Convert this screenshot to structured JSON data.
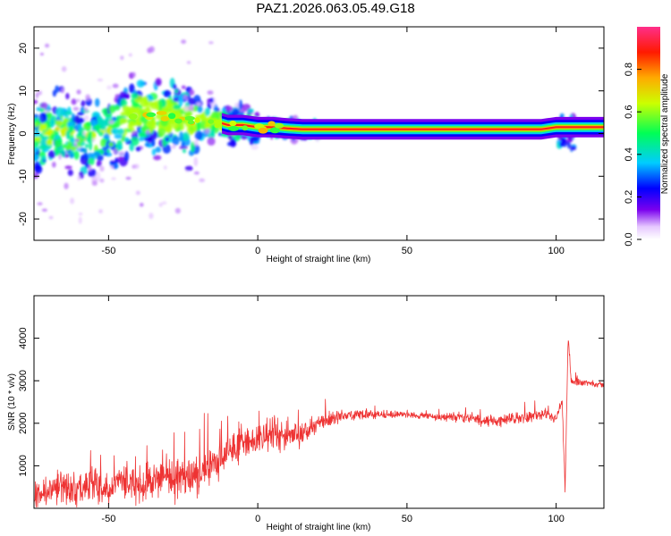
{
  "title": "PAZ1.2026.063.05.49.G18",
  "chart_data": [
    {
      "type": "heatmap",
      "name": "spectrogram",
      "xlabel": "Height of straight line (km)",
      "ylabel": "Frequency (Hz)",
      "xlim": [
        -75,
        116
      ],
      "ylim": [
        -25,
        25
      ],
      "xticks": [
        -50,
        0,
        50,
        100
      ],
      "yticks": [
        -20,
        -10,
        0,
        10,
        20
      ],
      "ridge": {
        "x": [
          -75,
          -70,
          -65,
          -60,
          -55,
          -50,
          -45,
          -40,
          -35,
          -30,
          -25,
          -20,
          -15,
          -10,
          -5,
          0,
          5,
          10,
          15,
          20,
          30,
          40,
          50,
          60,
          70,
          80,
          90,
          95,
          100,
          105,
          110,
          116
        ],
        "freq_hz": [
          -1,
          0,
          1,
          -2,
          -1,
          1,
          2,
          5,
          4,
          4,
          3,
          3,
          3,
          2,
          2,
          1.5,
          1.5,
          1.2,
          1,
          1,
          1,
          1,
          1,
          1,
          1,
          1,
          1,
          1,
          1.5,
          1.5,
          1.5,
          1.5
        ]
      },
      "colorbar": {
        "label": "Normalized spectral amplitude",
        "ticks": [
          "0.0",
          "0.2",
          "0.4",
          "0.6",
          "0.8"
        ],
        "range": [
          0,
          1
        ]
      }
    },
    {
      "type": "line",
      "name": "snr",
      "xlabel": "Height of straight line (km)",
      "ylabel": "SNR (10 * v/v)",
      "xlim": [
        -75,
        116
      ],
      "ylim": [
        0,
        5000
      ],
      "xticks": [
        -50,
        0,
        50,
        100
      ],
      "yticks": [
        1000,
        2000,
        3000,
        4000
      ],
      "series": [
        {
          "name": "SNR",
          "color": "#ee3333",
          "x": [
            -75,
            -70,
            -65,
            -60,
            -55,
            -50,
            -45,
            -40,
            -35,
            -30,
            -25,
            -20,
            -15,
            -10,
            -5,
            0,
            5,
            10,
            15,
            20,
            25,
            30,
            40,
            50,
            60,
            70,
            75,
            80,
            90,
            95,
            100,
            102,
            103,
            104,
            105,
            110,
            116
          ],
          "y": [
            300,
            450,
            500,
            420,
            550,
            450,
            650,
            550,
            650,
            750,
            600,
            800,
            1000,
            1300,
            1600,
            1600,
            1750,
            1700,
            1750,
            2000,
            2100,
            2200,
            2200,
            2200,
            2150,
            2150,
            2050,
            2050,
            2150,
            2200,
            2100,
            2500,
            400,
            4000,
            3000,
            2950,
            2900
          ]
        }
      ],
      "noise": {
        "x": [
          -75,
          -50,
          -25,
          -10,
          10,
          20,
          50,
          75,
          100,
          105,
          116
        ],
        "amplitude": [
          450,
          500,
          650,
          550,
          450,
          250,
          80,
          170,
          150,
          120,
          80
        ]
      }
    }
  ]
}
